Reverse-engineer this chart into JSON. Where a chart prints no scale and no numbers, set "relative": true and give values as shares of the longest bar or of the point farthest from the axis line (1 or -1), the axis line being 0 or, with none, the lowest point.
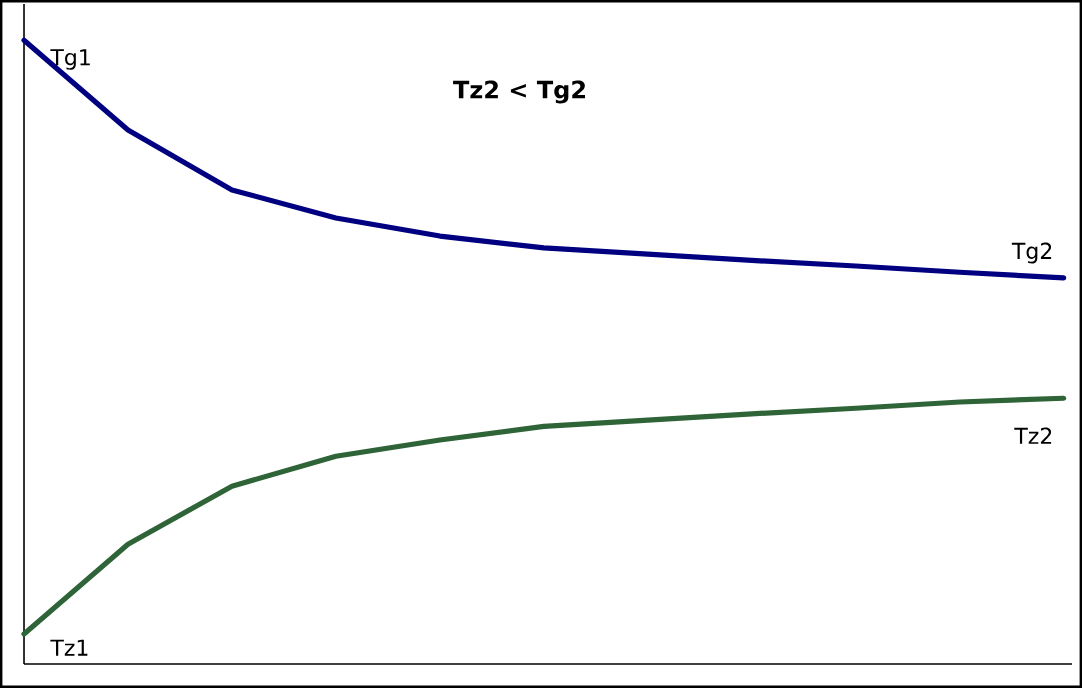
{
  "chart_data": {
    "type": "line",
    "title": "Tz2 < Tg2",
    "relative": true,
    "categories": [
      null,
      null,
      null,
      null,
      null,
      null,
      null,
      null,
      null,
      null,
      null
    ],
    "series": [
      {
        "color": "#000080",
        "values": [
          1.0,
          0.856,
          0.76,
          0.715,
          0.686,
          0.667,
          0.657,
          0.647,
          0.638,
          0.628,
          0.619
        ]
      },
      {
        "color": "#2e6437",
        "values": [
          0.048,
          0.192,
          0.285,
          0.333,
          0.359,
          0.381,
          0.391,
          0.401,
          0.41,
          0.42,
          0.426
        ]
      }
    ],
    "annotations": [
      "Tg1",
      "Tg2",
      "Tz1",
      "Tz2"
    ],
    "marker": "none",
    "line_style": "solid"
  }
}
